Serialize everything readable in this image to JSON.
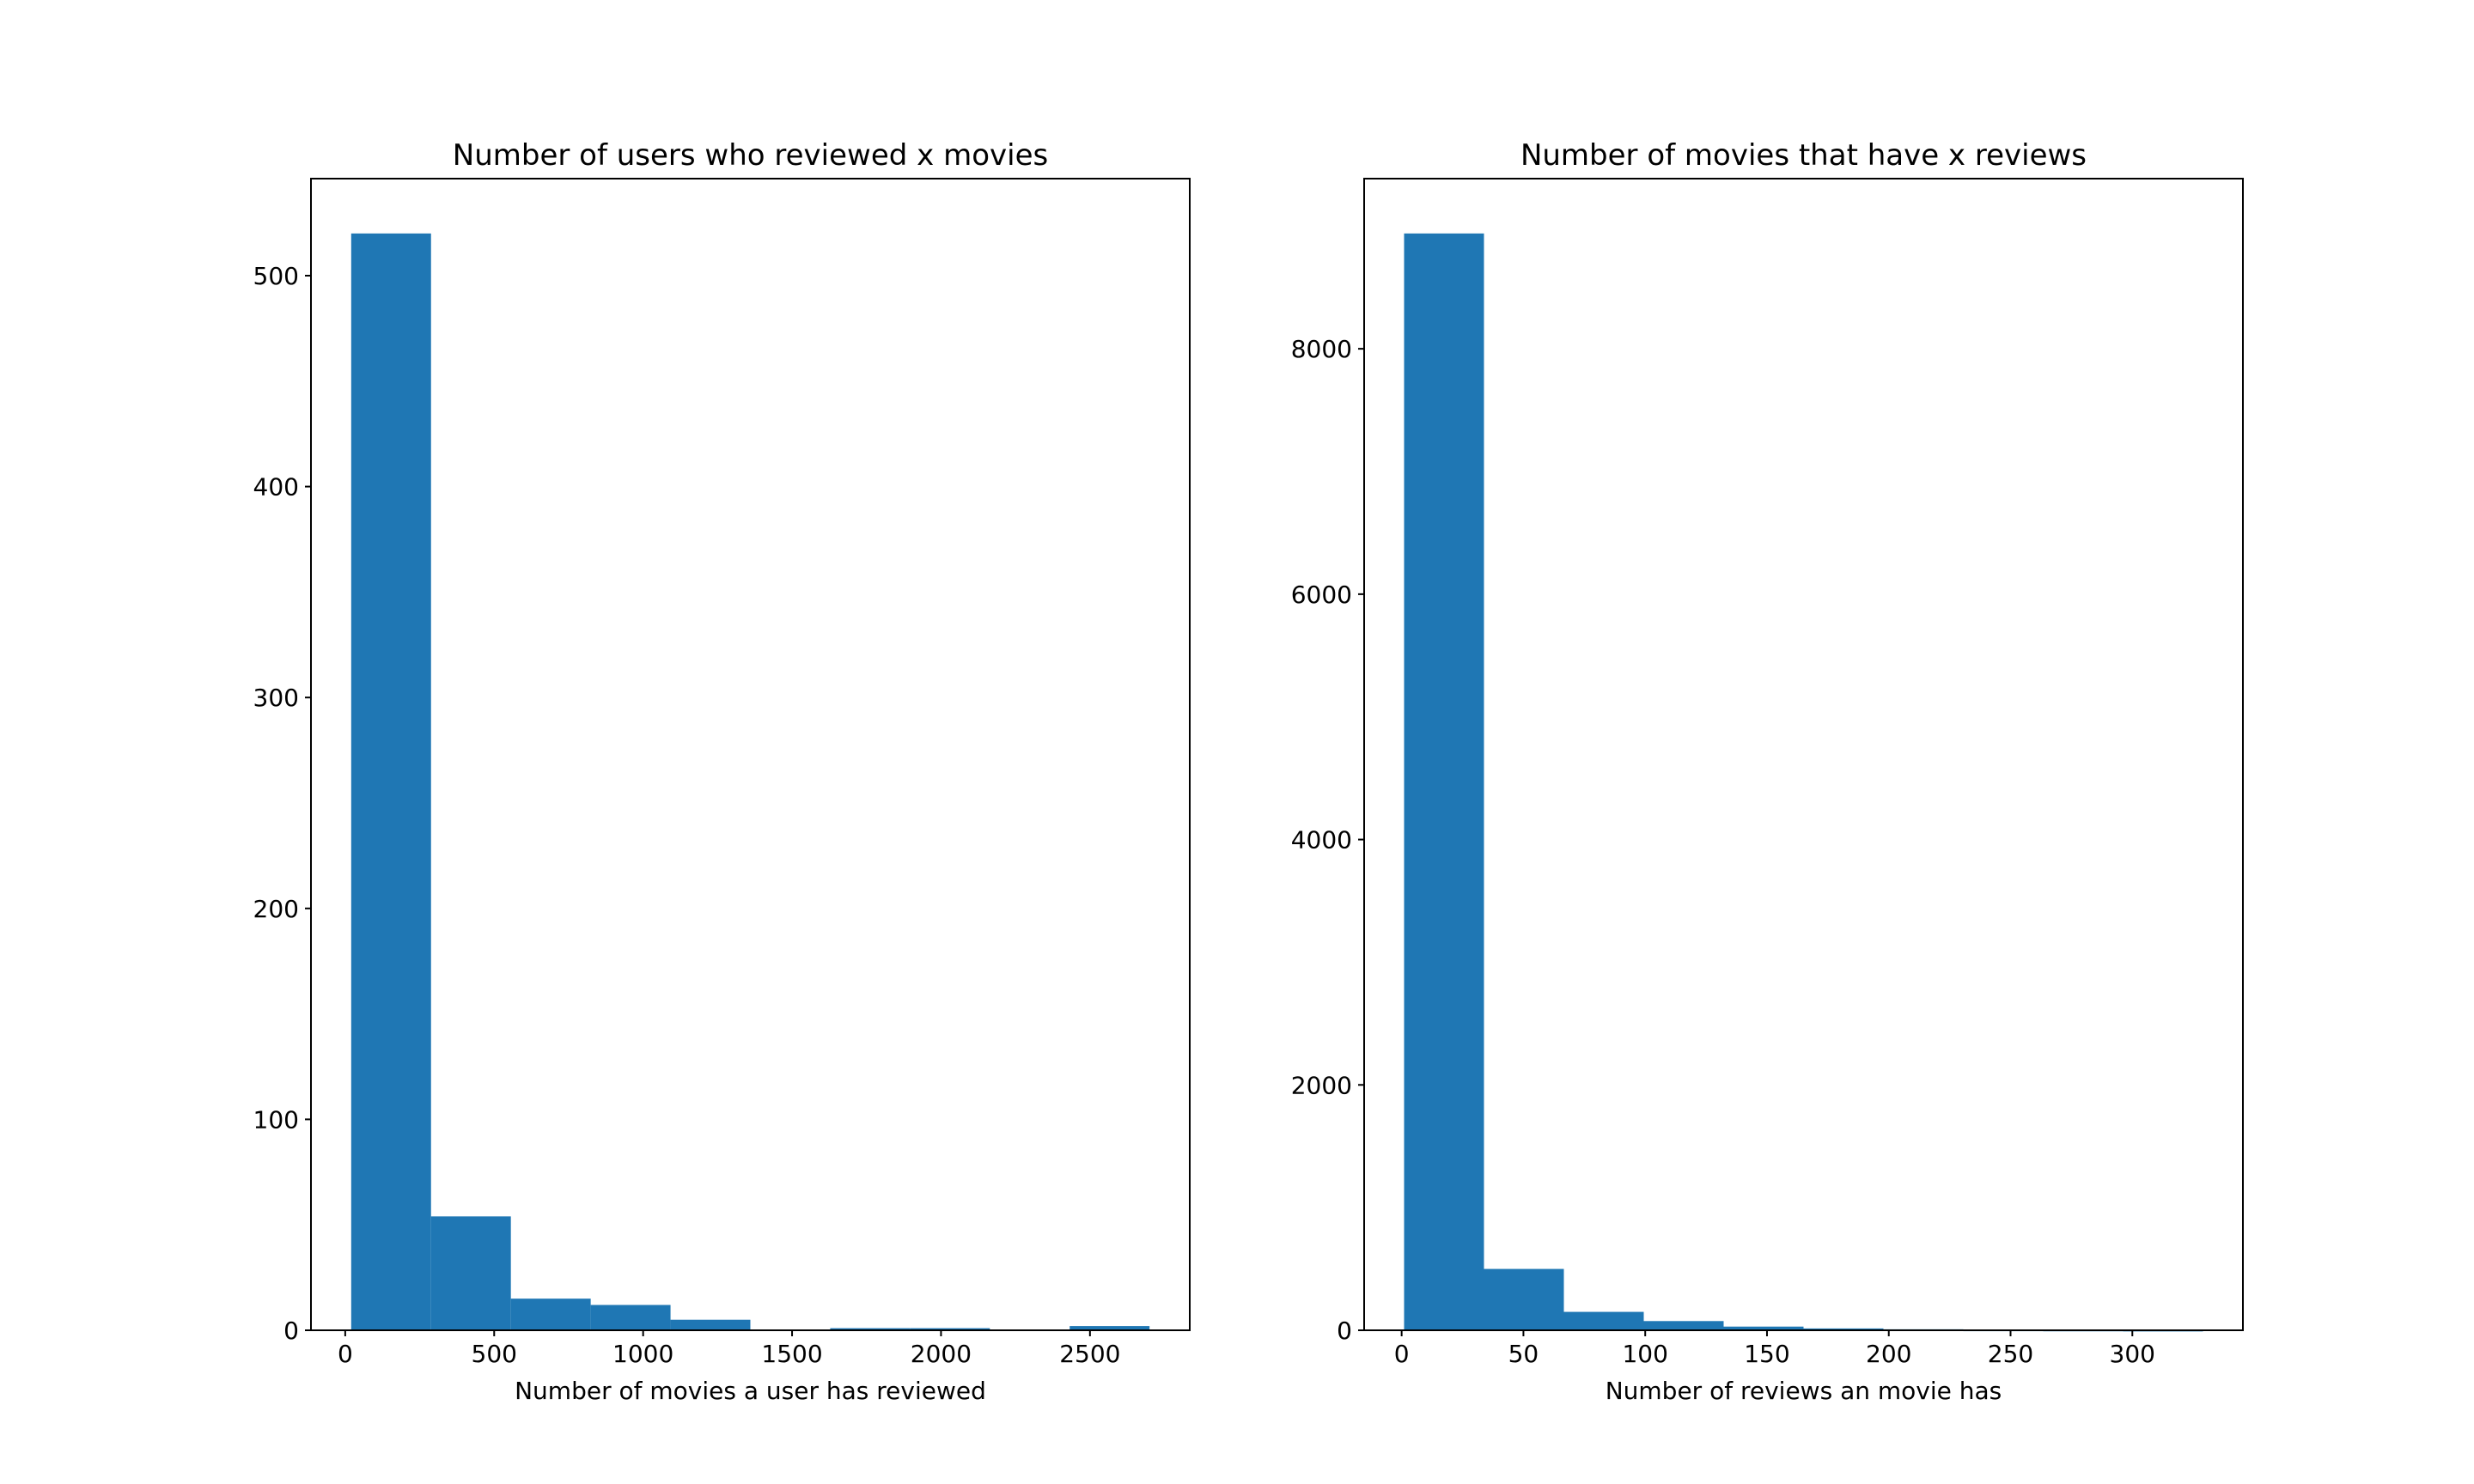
{
  "chart_data": [
    {
      "type": "bar",
      "title": "Number of users who reviewed x movies",
      "xlabel": "Number of movies a user has reviewed",
      "ylabel": "",
      "bin_edges": [
        20,
        288,
        556,
        824,
        1092,
        1360,
        1628,
        1896,
        2164,
        2432,
        2700
      ],
      "values": [
        520,
        54,
        15,
        12,
        5,
        0,
        1,
        1,
        0,
        2
      ],
      "xlim": [
        -115,
        2835
      ],
      "ylim": [
        0,
        546
      ],
      "xticks": [
        0,
        500,
        1000,
        1500,
        2000,
        2500
      ],
      "yticks": [
        0,
        100,
        200,
        300,
        400,
        500
      ],
      "xtick_labels": [
        "0",
        "500",
        "1000",
        "1500",
        "2000",
        "2500"
      ],
      "ytick_labels": [
        "0",
        "100",
        "200",
        "300",
        "400",
        "500"
      ],
      "color": "#1f77b4",
      "grid": false,
      "legend": "none"
    },
    {
      "type": "bar",
      "title": "Number of movies that have x reviews",
      "xlabel": "Number of reviews an movie has",
      "ylabel": "",
      "bin_edges": [
        1,
        33.8,
        66.6,
        99.4,
        132.2,
        165,
        197.8,
        230.6,
        263.4,
        296.2,
        329
      ],
      "values": [
        8940,
        500,
        150,
        75,
        30,
        15,
        8,
        3,
        2,
        1
      ],
      "xlim": [
        -15.4,
        345.4
      ],
      "ylim": [
        0,
        9387
      ],
      "xticks": [
        0,
        50,
        100,
        150,
        200,
        250,
        300
      ],
      "yticks": [
        0,
        2000,
        4000,
        6000,
        8000
      ],
      "xtick_labels": [
        "0",
        "50",
        "100",
        "150",
        "200",
        "250",
        "300"
      ],
      "ytick_labels": [
        "0",
        "2000",
        "4000",
        "6000",
        "8000"
      ],
      "color": "#1f77b4",
      "grid": false,
      "legend": "none"
    }
  ]
}
